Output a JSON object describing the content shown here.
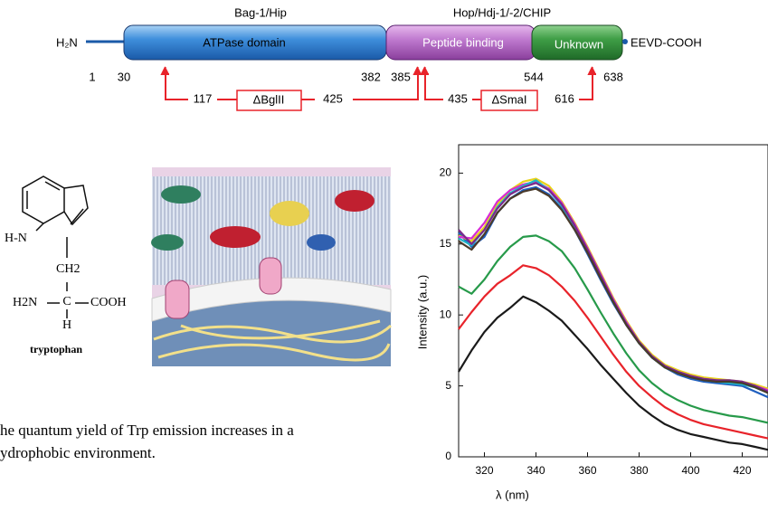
{
  "domain_diagram": {
    "labels": {
      "left_group": "Bag-1/Hip",
      "right_group": "Hop/Hdj-1/-2/CHIP",
      "n_terminus": "H₂N",
      "atpase": "ATPase domain",
      "peptide": "Peptide binding",
      "unknown": "Unknown",
      "c_terminus": "EEVD-COOH"
    },
    "positions": [
      "1",
      "30",
      "382",
      "385",
      "544",
      "638"
    ],
    "deletions": {
      "bglii": {
        "start": "117",
        "name": "ΔBglII",
        "end": "425"
      },
      "smai": {
        "start": "435",
        "name": "ΔSmaI",
        "end": "616"
      }
    }
  },
  "molecule": {
    "nh": "H-N",
    "ch2": "CH2",
    "amine": "H2N",
    "carbon": "C",
    "acid": "COOH",
    "h": "H",
    "name": "tryptophan"
  },
  "caption": {
    "lines": [
      "he quantum yield of Trp emission increases in a",
      "ydrophobic environment."
    ]
  },
  "chart_data": {
    "type": "line",
    "x_label": "λ (nm)",
    "y_label": "Intensity (a.u.)",
    "x": [
      310,
      315,
      320,
      325,
      330,
      335,
      340,
      345,
      350,
      355,
      360,
      365,
      370,
      375,
      380,
      385,
      390,
      395,
      400,
      405,
      410,
      415,
      420,
      425,
      430
    ],
    "xlim": [
      310,
      430
    ],
    "xticks": [
      320,
      340,
      360,
      380,
      400,
      420
    ],
    "ylim": [
      0,
      22
    ],
    "yticks": [
      0,
      5,
      10,
      15,
      20
    ],
    "series": [
      {
        "color": "#1a1a1a",
        "values": [
          6,
          7.5,
          8.8,
          9.8,
          10.5,
          11.3,
          10.9,
          10.3,
          9.6,
          8.6,
          7.6,
          6.5,
          5.5,
          4.5,
          3.6,
          2.9,
          2.3,
          1.9,
          1.6,
          1.4,
          1.2,
          1.0,
          0.9,
          0.7,
          0.5
        ]
      },
      {
        "color": "#e8232a",
        "values": [
          9,
          10.2,
          11.3,
          12.2,
          12.8,
          13.5,
          13.3,
          12.8,
          12,
          11,
          9.8,
          8.5,
          7.2,
          6,
          5,
          4.2,
          3.5,
          3,
          2.6,
          2.3,
          2.1,
          1.9,
          1.7,
          1.5,
          1.3
        ]
      },
      {
        "color": "#279a4a",
        "values": [
          12,
          11.5,
          12.5,
          13.8,
          14.8,
          15.5,
          15.6,
          15.2,
          14.5,
          13.3,
          11.8,
          10.2,
          8.7,
          7.3,
          6.1,
          5.2,
          4.5,
          4,
          3.6,
          3.3,
          3.1,
          2.9,
          2.8,
          2.6,
          2.4
        ]
      },
      {
        "color": "#1f5fbf",
        "values": [
          15.8,
          14.8,
          15.5,
          17.2,
          18.2,
          18.8,
          19,
          18.5,
          17.5,
          16,
          14.3,
          12.5,
          10.8,
          9.3,
          8,
          7,
          6.3,
          5.8,
          5.5,
          5.3,
          5.2,
          5.1,
          5,
          4.6,
          4.2
        ]
      },
      {
        "color": "#e8d21a",
        "values": [
          15.6,
          15.2,
          16.2,
          17.8,
          18.8,
          19.4,
          19.6,
          19.1,
          18,
          16.5,
          14.8,
          13,
          11.2,
          9.6,
          8.2,
          7.2,
          6.5,
          6.1,
          5.8,
          5.6,
          5.5,
          5.4,
          5.3,
          5.1,
          4.8
        ]
      },
      {
        "color": "#d62ad6",
        "values": [
          15.5,
          15.4,
          16.5,
          18,
          18.8,
          19.2,
          19.4,
          18.9,
          17.9,
          16.4,
          14.7,
          12.9,
          11.1,
          9.5,
          8.1,
          7.1,
          6.4,
          6,
          5.7,
          5.5,
          5.4,
          5.3,
          5.2,
          5,
          4.7
        ]
      },
      {
        "color": "#20b5c8",
        "values": [
          15.4,
          14.9,
          16,
          17.6,
          18.6,
          19.1,
          19.5,
          18.8,
          17.7,
          16.2,
          14.5,
          12.7,
          10.9,
          9.4,
          8,
          7,
          6.3,
          5.9,
          5.6,
          5.4,
          5.3,
          5.2,
          5.1,
          4.9,
          4.5
        ]
      },
      {
        "color": "#7a2a8a",
        "values": [
          16,
          15,
          16,
          17.5,
          18.5,
          19,
          19.3,
          18.8,
          17.8,
          16.3,
          14.6,
          12.8,
          11,
          9.4,
          8.1,
          7.1,
          6.4,
          6,
          5.7,
          5.5,
          5.4,
          5.4,
          5.3,
          5,
          4.6
        ]
      },
      {
        "color": "#4a3a2a",
        "values": [
          15.2,
          14.6,
          15.7,
          17.2,
          18.2,
          18.7,
          18.9,
          18.4,
          17.4,
          16,
          14.4,
          12.6,
          10.9,
          9.3,
          8,
          7,
          6.3,
          5.9,
          5.6,
          5.4,
          5.3,
          5.3,
          5.2,
          4.9,
          4.5
        ]
      }
    ]
  }
}
